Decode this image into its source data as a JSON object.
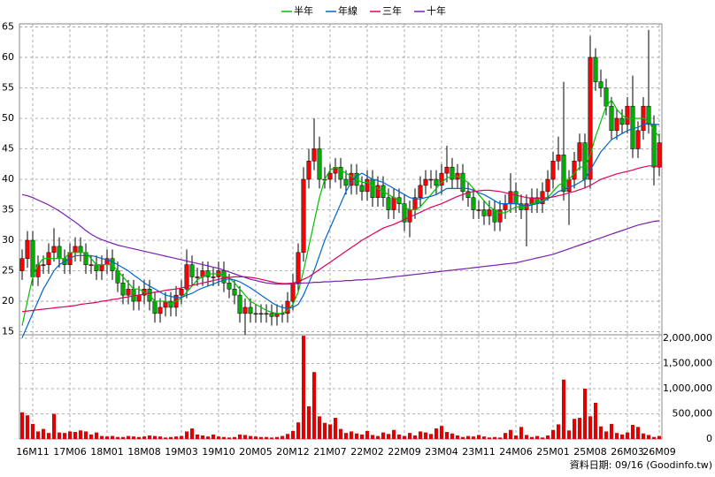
{
  "chart_data": [
    {
      "type": "candlestick",
      "categories": [
        null,
        null,
        "16M11",
        null,
        null,
        null,
        null,
        null,
        null,
        "17M06",
        null,
        null,
        null,
        null,
        null,
        null,
        "18M01",
        null,
        null,
        null,
        null,
        null,
        null,
        "18M08",
        null,
        null,
        null,
        null,
        null,
        null,
        "19M03",
        null,
        null,
        null,
        null,
        null,
        null,
        "19M10",
        null,
        null,
        null,
        null,
        null,
        null,
        "20M05",
        null,
        null,
        null,
        null,
        null,
        null,
        "20M12",
        null,
        null,
        null,
        null,
        null,
        null,
        "21M07",
        null,
        null,
        null,
        null,
        null,
        null,
        "22M02",
        null,
        null,
        null,
        null,
        null,
        null,
        "22M09",
        null,
        null,
        null,
        null,
        null,
        null,
        "23M04",
        null,
        null,
        null,
        null,
        null,
        null,
        "23M11",
        null,
        null,
        null,
        null,
        null,
        null,
        "24M06",
        null,
        null,
        null,
        null,
        null,
        null,
        "25M01",
        null,
        null,
        null,
        null,
        null,
        null,
        "25M08",
        null,
        null,
        null,
        null,
        null,
        null,
        "26M03",
        null,
        null,
        null,
        null,
        null,
        "26M09"
      ],
      "open": [
        25,
        27,
        30,
        24,
        26,
        26,
        28,
        29,
        27,
        26,
        28,
        29,
        28,
        26,
        26,
        25,
        26,
        27,
        25,
        23,
        21,
        22,
        20,
        21,
        22,
        20,
        18,
        19,
        20,
        19,
        21,
        22,
        26,
        24,
        24,
        25,
        24,
        24,
        25,
        23,
        22,
        21,
        18,
        19,
        18,
        18,
        18,
        18,
        17.5,
        18,
        18,
        20,
        23,
        28,
        40,
        43,
        45,
        40,
        40,
        41,
        42,
        40,
        39,
        41,
        39,
        38,
        40,
        37,
        39,
        37,
        35,
        37,
        36,
        33,
        35,
        37,
        39,
        40,
        40,
        39,
        41,
        42,
        40,
        41,
        38,
        37,
        35,
        35,
        34,
        35,
        33,
        35,
        36,
        38,
        36,
        35,
        36,
        37,
        36,
        38,
        40,
        43,
        44,
        38,
        40,
        43,
        46,
        40,
        60,
        56,
        55,
        52,
        48,
        50,
        49,
        52,
        45,
        48,
        52,
        49,
        42
      ],
      "high": [
        28.5,
        31.5,
        31.5,
        27.5,
        27.5,
        29.5,
        32,
        30.5,
        28.5,
        29.5,
        30.5,
        30.5,
        29.5,
        27.5,
        27.5,
        27.5,
        28.5,
        28.5,
        26.5,
        24.5,
        23.5,
        23.5,
        22.5,
        23.5,
        23.5,
        21.5,
        20.5,
        21.5,
        21.5,
        22.5,
        23.5,
        28.5,
        27.5,
        25.5,
        26.5,
        26.5,
        25.5,
        26.5,
        26.5,
        24.5,
        23.5,
        22.5,
        20.5,
        20.5,
        19.5,
        19.5,
        19.5,
        19.5,
        19.5,
        19.5,
        21.5,
        24.5,
        29.5,
        42,
        45,
        50,
        47,
        42,
        42.5,
        43.5,
        43.5,
        41.5,
        42.5,
        42.5,
        40.5,
        41.5,
        41.5,
        40.5,
        40.5,
        38.5,
        38.5,
        38.5,
        37.5,
        36.5,
        38.5,
        40.5,
        41.5,
        41.5,
        41.5,
        42.5,
        45.5,
        43.5,
        42.5,
        42.5,
        39.5,
        38.5,
        36.5,
        36.5,
        36.5,
        36.5,
        36.5,
        37.5,
        41,
        39.5,
        37.5,
        37.5,
        38.5,
        38.5,
        39.5,
        41.5,
        44.5,
        47,
        56,
        41.5,
        44.5,
        47.5,
        47.5,
        63.5,
        61.5,
        58,
        56.5,
        53.5,
        51.5,
        51.5,
        53.5,
        57,
        49.5,
        53.5,
        64.5,
        50.5,
        47.5
      ],
      "low": [
        23.5,
        25.5,
        22.5,
        22.5,
        24.5,
        24.5,
        26.5,
        25.5,
        24.5,
        24.5,
        26.5,
        26.5,
        24.5,
        24.5,
        23.5,
        23.5,
        24.5,
        23.5,
        21.5,
        19.5,
        19.5,
        18.5,
        18.5,
        19.5,
        18.5,
        16.5,
        16.5,
        17.5,
        17.5,
        17.5,
        19.5,
        20.5,
        22.5,
        22.5,
        22.5,
        22.5,
        22.5,
        22.5,
        21.5,
        20.5,
        19.5,
        16.5,
        14.5,
        16.5,
        16.5,
        16.5,
        16.5,
        16,
        16,
        16.5,
        16.5,
        18.5,
        21.5,
        26.5,
        38.5,
        41.5,
        38.5,
        38.5,
        38.5,
        39.5,
        38.5,
        37.5,
        37.5,
        37.5,
        36.5,
        36.5,
        35.5,
        35.5,
        35.5,
        33.5,
        33.5,
        34.5,
        31.5,
        30.5,
        33.5,
        35.5,
        37.5,
        38.5,
        37.5,
        37.5,
        39.5,
        38.5,
        38.5,
        36.5,
        35.5,
        33.5,
        33.5,
        32.5,
        32.5,
        31.5,
        31.5,
        33.5,
        34.5,
        34.5,
        33.5,
        29,
        34.5,
        34.5,
        34.5,
        36.5,
        38.5,
        41.5,
        36.5,
        32.5,
        38.5,
        41.5,
        38.5,
        38.5,
        54.5,
        53.5,
        50.5,
        46.5,
        46.5,
        47.5,
        47.5,
        43.5,
        43.5,
        46.5,
        47.5,
        39,
        40.5
      ],
      "close": [
        27,
        30,
        24,
        26,
        26,
        28,
        29,
        27,
        26,
        28,
        29,
        28,
        26,
        26,
        25,
        26,
        27,
        25,
        23,
        21,
        22,
        20,
        21,
        22,
        20,
        18,
        19,
        20,
        19,
        21,
        22,
        26,
        24,
        24,
        25,
        24,
        24,
        25,
        23,
        22,
        21,
        18,
        19,
        18,
        18,
        18,
        18,
        17.5,
        18,
        18,
        20,
        23,
        28,
        40,
        43,
        45,
        40,
        40,
        41,
        42,
        40,
        39,
        41,
        39,
        38,
        40,
        37,
        39,
        37,
        35,
        37,
        36,
        33,
        35,
        37,
        39,
        40,
        40,
        39,
        41,
        42,
        40,
        41,
        38,
        37,
        35,
        35,
        34,
        35,
        33,
        35,
        36,
        38,
        36,
        35,
        36,
        37,
        36,
        38,
        40,
        43,
        44,
        38,
        40,
        43,
        46,
        40,
        60,
        56,
        55,
        52,
        48,
        50,
        49,
        52,
        45,
        48,
        52,
        49,
        42,
        46
      ],
      "up_color": "#ff0000",
      "down_color": "#00b000",
      "series": [
        {
          "name": "半年",
          "color": "#00c000",
          "values": [
            16,
            20,
            24,
            26,
            27,
            27,
            27,
            27,
            27,
            28,
            28,
            28,
            28,
            27,
            26,
            26,
            26,
            26,
            25,
            24,
            23,
            22,
            22,
            21.5,
            21,
            20,
            20,
            20,
            19.5,
            20,
            20.5,
            21.5,
            22.5,
            23.5,
            24,
            24.5,
            24.5,
            24.5,
            24.3,
            23.8,
            23,
            22,
            21,
            20,
            19.5,
            19,
            18.5,
            18.2,
            18,
            18,
            18.5,
            19.5,
            21.5,
            25,
            29,
            33,
            37,
            40,
            41.5,
            42,
            41.5,
            41,
            40.5,
            40,
            39.5,
            39.5,
            39,
            38.5,
            38,
            37.5,
            37,
            36.5,
            35.5,
            35,
            35,
            35.5,
            36.5,
            37.5,
            38.5,
            39.5,
            40.2,
            40.5,
            40.5,
            40,
            39.5,
            38.5,
            37.5,
            36.5,
            35.5,
            35,
            34.5,
            34.5,
            35,
            35.5,
            35.5,
            35.5,
            36,
            36,
            36.5,
            37,
            38,
            39,
            39.5,
            40,
            41,
            42,
            42,
            44,
            47,
            49.5,
            52,
            53,
            51.5,
            50.5,
            50,
            50,
            50,
            50,
            49.5,
            48,
            47
          ]
        },
        {
          "name": "年線",
          "color": "#0066cc",
          "values": [
            14,
            16,
            18,
            20,
            22,
            23.5,
            25,
            26,
            26.5,
            27,
            27.5,
            27.5,
            27.5,
            27.5,
            27.3,
            27,
            26.8,
            26.5,
            26,
            25.5,
            25,
            24.3,
            23.7,
            23,
            22.5,
            22,
            21.5,
            21,
            20.8,
            20.6,
            20.6,
            21,
            21.3,
            21.8,
            22.2,
            22.5,
            22.8,
            23.2,
            23.5,
            23.7,
            23.5,
            23.2,
            22.7,
            22.2,
            21.6,
            21,
            20.4,
            19.8,
            19.3,
            19,
            18.8,
            19,
            19.5,
            21,
            23,
            25,
            27.5,
            30,
            32,
            34,
            36,
            38,
            39.5,
            40.5,
            41,
            40.5,
            40,
            39.8,
            39.5,
            39,
            38.5,
            38,
            37.5,
            37,
            36.8,
            36.8,
            37,
            37.2,
            37.5,
            38,
            38.5,
            38.5,
            38.5,
            38.5,
            38.5,
            38.2,
            37.8,
            37.5,
            37,
            36.5,
            36,
            36,
            36,
            36,
            35.8,
            35.6,
            35.8,
            36,
            36.3,
            36.8,
            37.3,
            38,
            38.3,
            38.7,
            39,
            39.5,
            40,
            41.5,
            43,
            44.5,
            45.5,
            46.5,
            47,
            47.5,
            48,
            48.3,
            48.5,
            49,
            49.2,
            49,
            49
          ]
        },
        {
          "name": "三年",
          "color": "#e0005a",
          "values": [
            18.3,
            18.4,
            18.5,
            18.6,
            18.7,
            18.8,
            18.9,
            19,
            19.1,
            19.2,
            19.3,
            19.5,
            19.6,
            19.7,
            19.8,
            20,
            20.1,
            20.3,
            20.4,
            20.6,
            20.7,
            20.9,
            21,
            21.2,
            21.3,
            21.5,
            21.6,
            21.8,
            21.9,
            22,
            22.2,
            22.4,
            22.6,
            22.8,
            23,
            23.2,
            23.4,
            23.6,
            23.8,
            23.9,
            24,
            24,
            24,
            23.9,
            23.8,
            23.6,
            23.4,
            23.2,
            23,
            22.9,
            22.9,
            23,
            23.2,
            23.6,
            24,
            24.6,
            25.2,
            25.8,
            26.4,
            27,
            27.6,
            28.2,
            28.8,
            29.4,
            30,
            30.5,
            31,
            31.5,
            32,
            32.3,
            32.6,
            33,
            33.4,
            33.8,
            34.2,
            34.6,
            35,
            35.4,
            35.7,
            36,
            36.4,
            36.8,
            37.2,
            37.5,
            37.8,
            38,
            38.1,
            38.2,
            38.2,
            38.1,
            38,
            37.8,
            37.6,
            37.4,
            37.2,
            37,
            36.9,
            36.9,
            36.9,
            37,
            37.1,
            37.3,
            37.5,
            37.8,
            38,
            38.3,
            38.6,
            39,
            39.5,
            40,
            40.3,
            40.6,
            40.9,
            41.1,
            41.3,
            41.5,
            41.8,
            42,
            42.2,
            42.2,
            42.1
          ]
        },
        {
          "name": "十年",
          "color": "#7a1fb0",
          "values": [
            37.5,
            37.3,
            37,
            36.6,
            36.2,
            35.8,
            35.3,
            34.8,
            34.2,
            33.6,
            33,
            32.3,
            31.6,
            31,
            30.5,
            30.1,
            29.8,
            29.5,
            29.2,
            29,
            28.8,
            28.6,
            28.4,
            28.2,
            28,
            27.8,
            27.6,
            27.4,
            27.2,
            27,
            26.8,
            26.6,
            26.4,
            26.2,
            26,
            25.8,
            25.6,
            25.4,
            25.1,
            24.8,
            24.5,
            24.2,
            23.9,
            23.6,
            23.4,
            23.2,
            23,
            22.9,
            22.8,
            22.8,
            22.8,
            22.8,
            22.9,
            23,
            23,
            23.1,
            23.1,
            23.2,
            23.2,
            23.3,
            23.3,
            23.4,
            23.4,
            23.5,
            23.5,
            23.6,
            23.6,
            23.7,
            23.8,
            23.9,
            24,
            24.1,
            24.2,
            24.3,
            24.4,
            24.5,
            24.6,
            24.7,
            24.8,
            24.9,
            25,
            25.1,
            25.2,
            25.3,
            25.4,
            25.5,
            25.6,
            25.7,
            25.8,
            25.9,
            26,
            26.1,
            26.2,
            26.3,
            26.5,
            26.7,
            26.9,
            27.1,
            27.3,
            27.5,
            27.7,
            28,
            28.3,
            28.6,
            28.9,
            29.2,
            29.5,
            29.8,
            30.1,
            30.4,
            30.7,
            31,
            31.3,
            31.6,
            31.9,
            32.2,
            32.5,
            32.7,
            32.9,
            33.1,
            33.2
          ]
        }
      ],
      "ylim": [
        14.5,
        65.5
      ],
      "yticks": [
        15,
        20,
        25,
        30,
        35,
        40,
        45,
        50,
        55,
        60,
        65
      ],
      "grid": true,
      "legend": "top"
    },
    {
      "type": "bar",
      "values": [
        530000,
        470000,
        300000,
        150000,
        200000,
        120000,
        500000,
        130000,
        120000,
        150000,
        140000,
        170000,
        150000,
        90000,
        130000,
        60000,
        50000,
        60000,
        40000,
        40000,
        60000,
        50000,
        40000,
        50000,
        70000,
        60000,
        50000,
        30000,
        40000,
        50000,
        60000,
        150000,
        210000,
        90000,
        70000,
        50000,
        90000,
        50000,
        40000,
        30000,
        40000,
        90000,
        80000,
        60000,
        50000,
        40000,
        40000,
        30000,
        40000,
        60000,
        100000,
        160000,
        330000,
        2050000,
        650000,
        1330000,
        450000,
        320000,
        290000,
        420000,
        200000,
        120000,
        150000,
        110000,
        90000,
        160000,
        80000,
        60000,
        130000,
        100000,
        180000,
        90000,
        60000,
        120000,
        70000,
        150000,
        130000,
        100000,
        210000,
        260000,
        140000,
        110000,
        70000,
        40000,
        60000,
        50000,
        80000,
        50000,
        30000,
        40000,
        30000,
        120000,
        180000,
        70000,
        240000,
        80000,
        40000,
        60000,
        30000,
        70000,
        180000,
        290000,
        1180000,
        170000,
        400000,
        420000,
        1000000,
        450000,
        720000,
        250000,
        150000,
        300000,
        120000,
        90000,
        130000,
        280000,
        240000,
        110000,
        80000,
        40000,
        60000
      ],
      "color": "#e00000",
      "ylim": [
        0,
        2070000
      ],
      "yticks": [
        0,
        {
          "value": 500000,
          "label": "500,000"
        },
        {
          "value": 1000000,
          "label": "1,000,000"
        },
        {
          "value": 1500000,
          "label": "1,500,000"
        },
        {
          "value": 2000000,
          "label": "2,000,000"
        }
      ],
      "grid": true,
      "source": "資料日期: 09/16 (Goodinfo.tw)"
    }
  ]
}
